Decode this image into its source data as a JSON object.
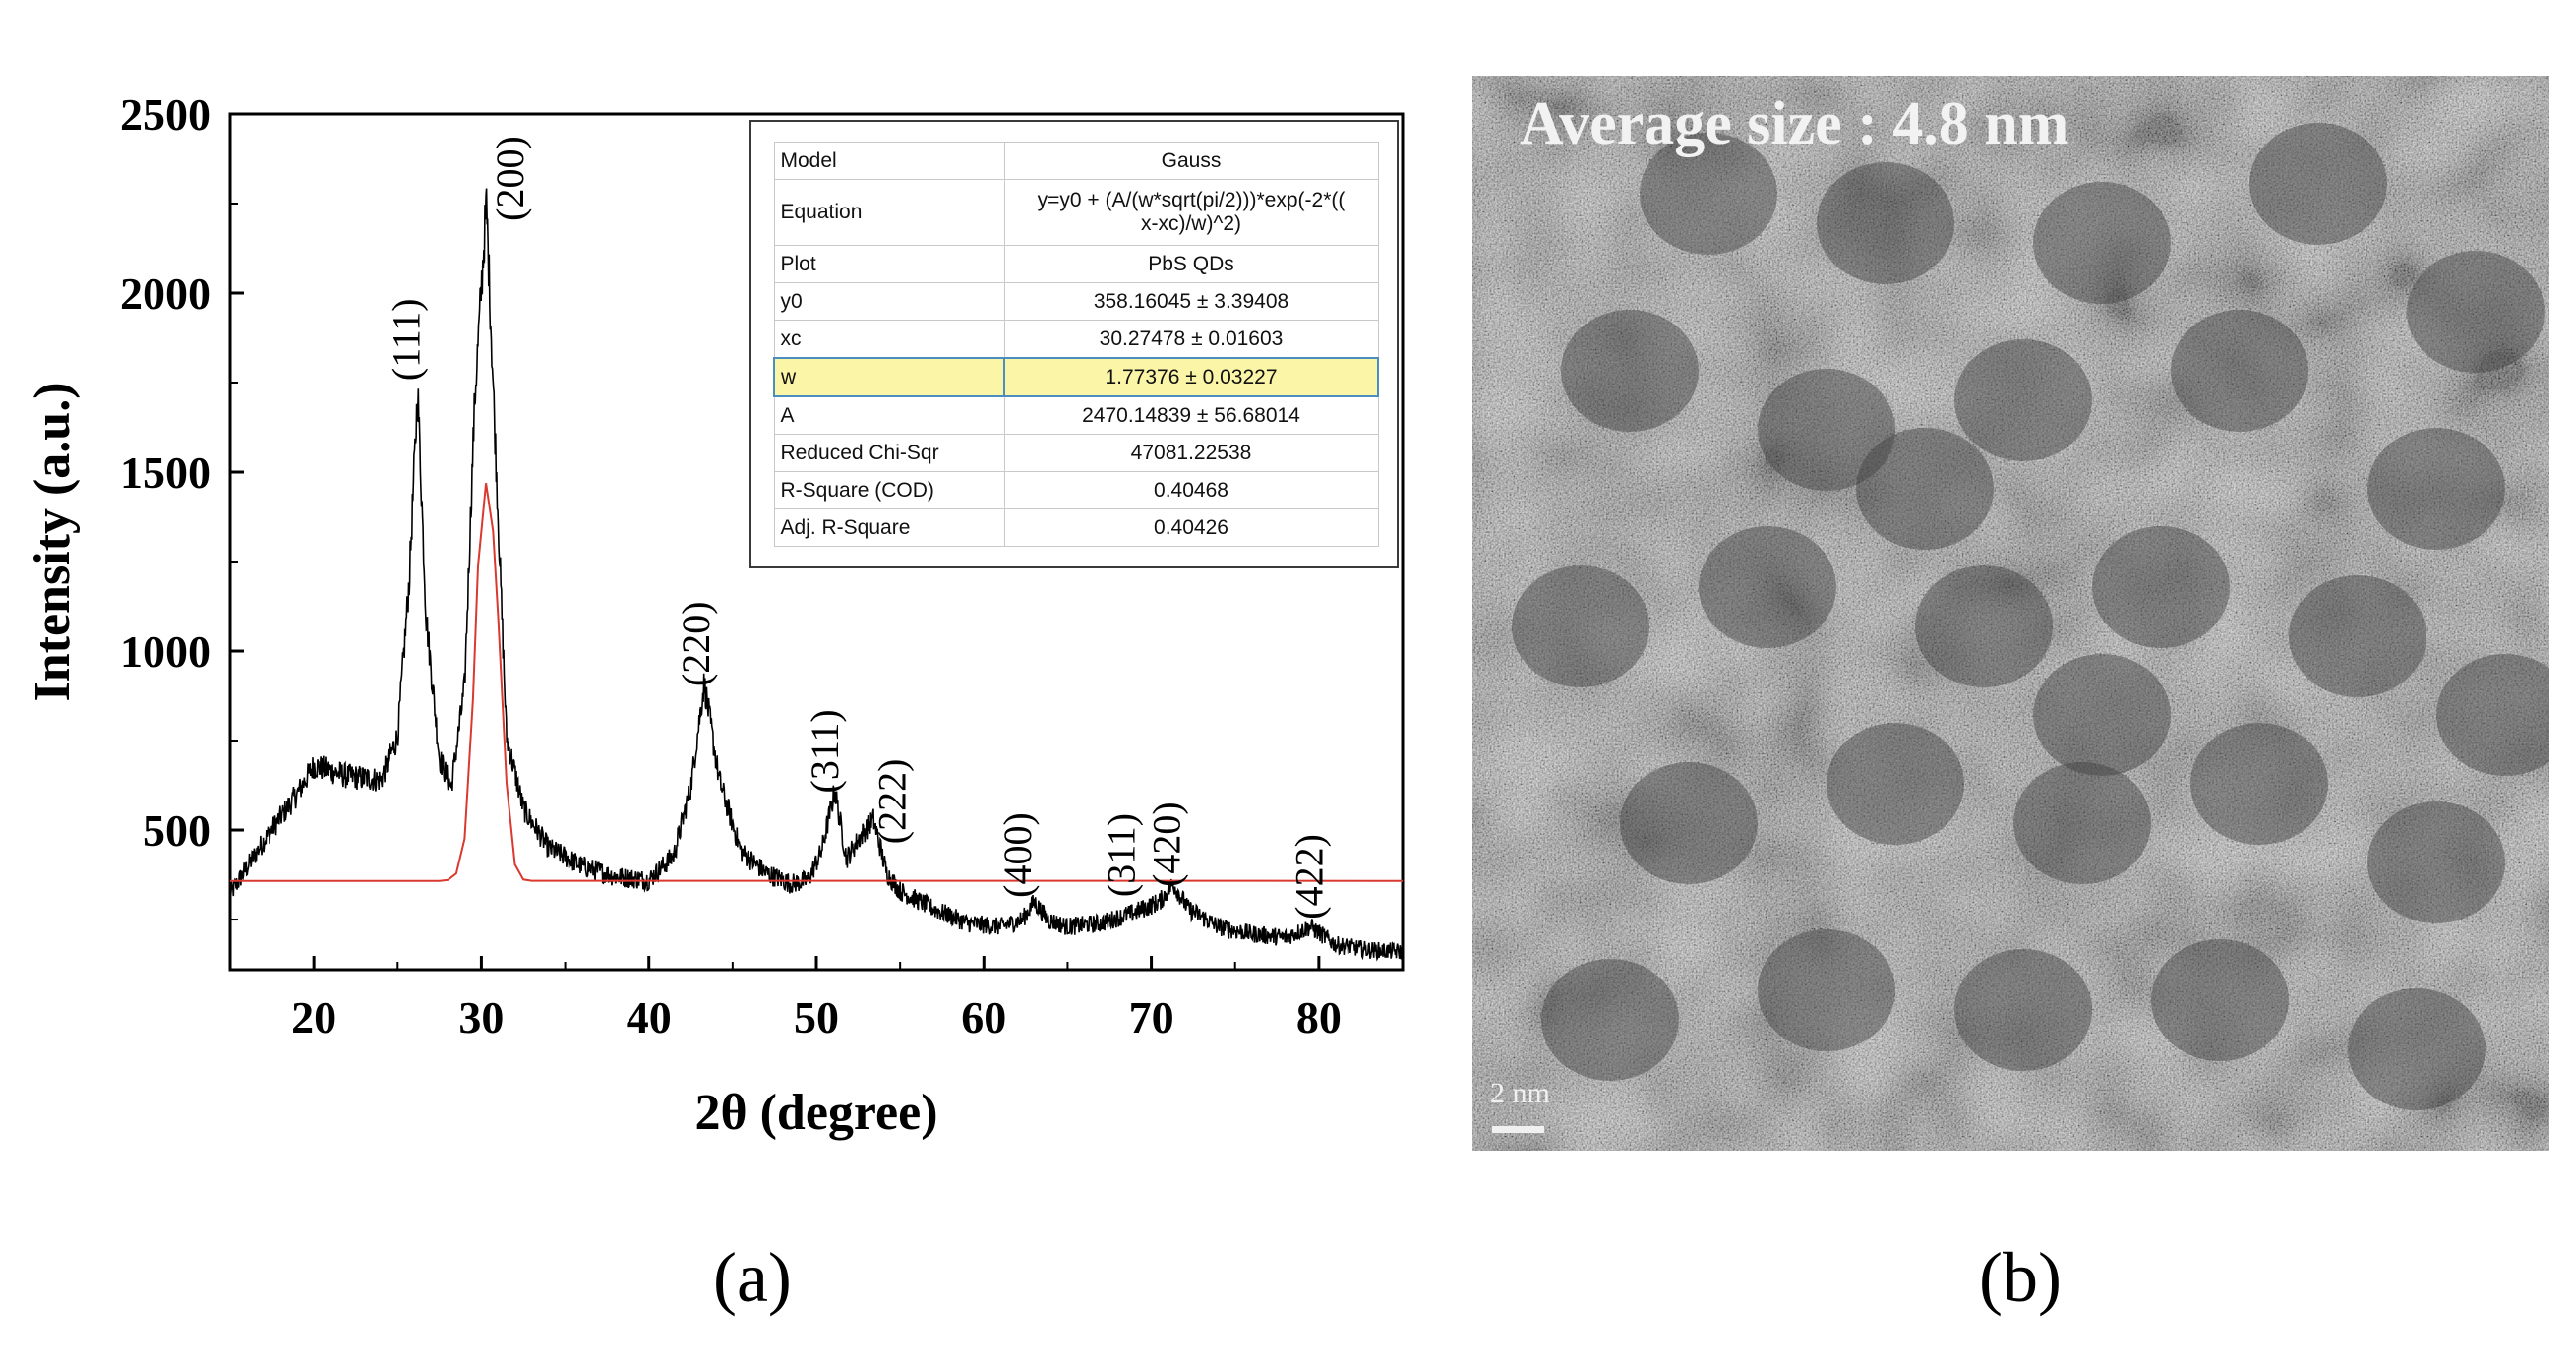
{
  "chart_data": [
    {
      "type": "line",
      "panel": "(a)",
      "xlabel": "2θ (degree)",
      "ylabel": "Intensity (a.u.)",
      "xlim": [
        15,
        85
      ],
      "ylim": [
        110,
        2500
      ],
      "x_ticks": [
        20,
        30,
        40,
        50,
        60,
        70,
        80
      ],
      "y_ticks": [
        500,
        1000,
        1500,
        2000,
        2500
      ],
      "grid": false,
      "series": [
        {
          "name": "PbS QDs (measured)",
          "color": "#000000",
          "x": [
            15,
            17,
            19,
            20,
            22,
            24,
            25,
            25.7,
            26.2,
            26.7,
            27.5,
            28.2,
            29,
            29.6,
            30.3,
            30.9,
            31.5,
            32.5,
            34,
            36,
            38,
            40,
            41.5,
            42.5,
            43.3,
            44.2,
            45.5,
            47,
            48.5,
            49.5,
            50.3,
            51.1,
            51.8,
            52.6,
            53.4,
            54.2,
            55,
            57,
            59,
            61,
            62.3,
            63,
            63.8,
            65,
            67,
            69,
            70.5,
            71.3,
            72.2,
            74,
            76,
            78,
            79.5,
            81,
            83,
            85
          ],
          "y": [
            320,
            470,
            600,
            680,
            650,
            640,
            760,
            1200,
            1730,
            1100,
            700,
            620,
            900,
            1700,
            2250,
            1500,
            760,
            560,
            450,
            400,
            370,
            360,
            430,
            620,
            910,
            640,
            440,
            380,
            350,
            360,
            440,
            610,
            420,
            480,
            530,
            380,
            330,
            280,
            240,
            230,
            250,
            300,
            250,
            230,
            240,
            270,
            300,
            350,
            280,
            230,
            210,
            200,
            230,
            180,
            165,
            160
          ]
        },
        {
          "name": "Gauss fit",
          "color": "#d9392f",
          "x": [
            15,
            27.5,
            28,
            28.5,
            29,
            29.5,
            29.8,
            30.27478,
            30.7,
            31,
            31.5,
            32,
            32.5,
            33,
            85
          ],
          "y": [
            358.16,
            358.16,
            360.5,
            378.7,
            475.8,
            865.3,
            1237.1,
            1469.3,
            1335.2,
            1094.2,
            631.3,
            404.3,
            361.9,
            358.3,
            358.16
          ]
        }
      ],
      "annotations": [
        {
          "text": "(111)",
          "x": 26.3,
          "y": 1870
        },
        {
          "text": "(200)",
          "x": 32.5,
          "y": 2320
        },
        {
          "text": "(220)",
          "x": 43.6,
          "y": 1020
        },
        {
          "text": "(311)",
          "x": 51.3,
          "y": 720
        },
        {
          "text": "(222)",
          "x": 55.3,
          "y": 580
        },
        {
          "text": "(400)",
          "x": 62.8,
          "y": 430
        },
        {
          "text": "(311)",
          "x": 69.0,
          "y": 430
        },
        {
          "text": "(420)",
          "x": 71.7,
          "y": 460
        },
        {
          "text": "(422)",
          "x": 80.2,
          "y": 370
        }
      ],
      "fit_table": [
        {
          "key": "Model",
          "value": "Gauss"
        },
        {
          "key": "Equation",
          "value": "y=y0 + (A/(w*sqrt(pi/2)))*exp(-2*((",
          "value2": "x-xc)/w)^2)"
        },
        {
          "key": "Plot",
          "value": "PbS QDs"
        },
        {
          "key": "y0",
          "value": "358.16045 ± 3.39408"
        },
        {
          "key": "xc",
          "value": "30.27478 ± 0.01603"
        },
        {
          "key": "w",
          "value": "1.77376 ± 0.03227",
          "highlight": true
        },
        {
          "key": "A",
          "value": "2470.14839 ± 56.68014"
        },
        {
          "key": "Reduced Chi-Sqr",
          "value": "47081.22538"
        },
        {
          "key": "R-Square (COD)",
          "value": "0.40468"
        },
        {
          "key": "Adj. R-Square",
          "value": "0.40426"
        }
      ]
    }
  ],
  "tem": {
    "title": "Average size : 4.8 nm",
    "scale_label": "2 nm"
  },
  "panel_labels": {
    "a": "(a)",
    "b": "(b)"
  }
}
